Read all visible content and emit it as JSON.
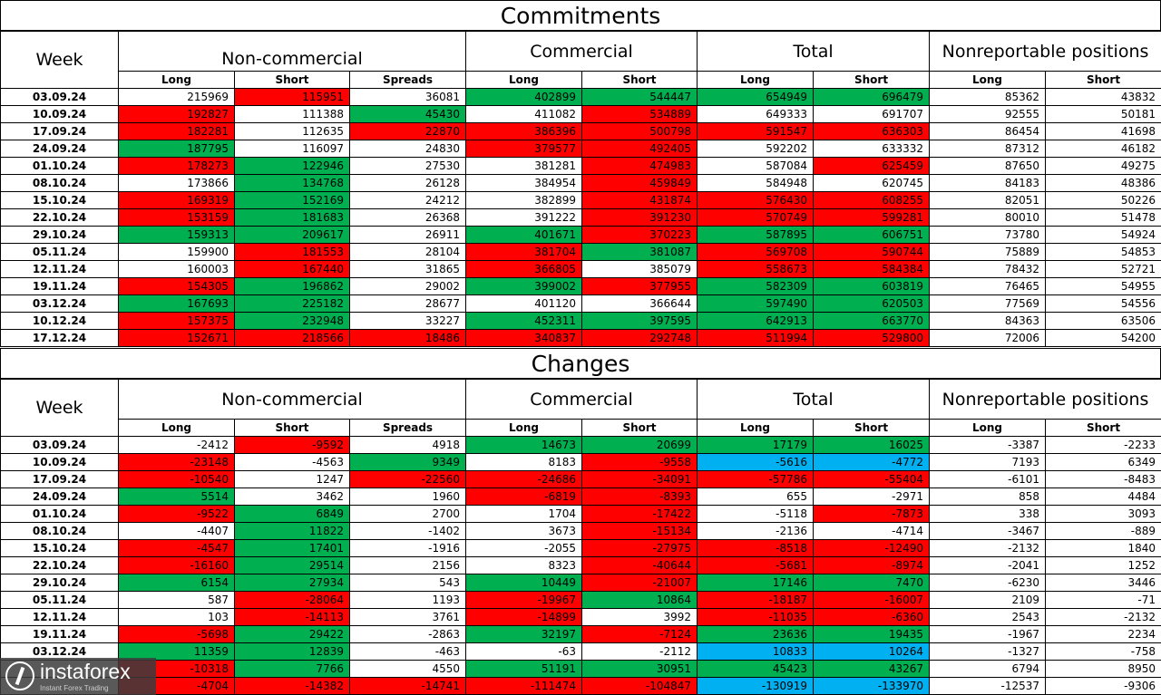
{
  "headers": {
    "week": "Week",
    "noncommercial": "Non-commercial",
    "commercial": "Commercial",
    "total": "Total",
    "nonreportable": "Nonreportable positions",
    "long": "Long",
    "short": "Short",
    "spreads": "Spreads"
  },
  "commitments": {
    "title": "Commitments",
    "rows": [
      {
        "week": "03.09.24",
        "values": [
          "215969",
          "115951",
          "36081",
          "402899",
          "544447",
          "654949",
          "696479",
          "85362",
          "43832"
        ],
        "colors": [
          "",
          "r",
          "",
          "g",
          "g",
          "g",
          "g",
          "",
          ""
        ]
      },
      {
        "week": "10.09.24",
        "values": [
          "192827",
          "111388",
          "45430",
          "411082",
          "534889",
          "649333",
          "691707",
          "92555",
          "50181"
        ],
        "colors": [
          "r",
          "",
          "g",
          "",
          "r",
          "",
          "",
          "",
          ""
        ]
      },
      {
        "week": "17.09.24",
        "values": [
          "182281",
          "112635",
          "22870",
          "386396",
          "500798",
          "591547",
          "636303",
          "86454",
          "41698"
        ],
        "colors": [
          "r",
          "",
          "r",
          "r",
          "r",
          "r",
          "r",
          "",
          ""
        ]
      },
      {
        "week": "24.09.24",
        "values": [
          "187795",
          "116097",
          "24830",
          "379577",
          "492405",
          "592202",
          "633332",
          "87312",
          "46182"
        ],
        "colors": [
          "g",
          "",
          "",
          "r",
          "r",
          "",
          "",
          "",
          ""
        ]
      },
      {
        "week": "01.10.24",
        "values": [
          "178273",
          "122946",
          "27530",
          "381281",
          "474983",
          "587084",
          "625459",
          "87650",
          "49275"
        ],
        "colors": [
          "r",
          "g",
          "",
          "",
          "r",
          "",
          "r",
          "",
          ""
        ]
      },
      {
        "week": "08.10.24",
        "values": [
          "173866",
          "134768",
          "26128",
          "384954",
          "459849",
          "584948",
          "620745",
          "84183",
          "48386"
        ],
        "colors": [
          "",
          "g",
          "",
          "",
          "r",
          "",
          "",
          "",
          ""
        ]
      },
      {
        "week": "15.10.24",
        "values": [
          "169319",
          "152169",
          "24212",
          "382899",
          "431874",
          "576430",
          "608255",
          "82051",
          "50226"
        ],
        "colors": [
          "r",
          "g",
          "",
          "",
          "r",
          "r",
          "r",
          "",
          ""
        ]
      },
      {
        "week": "22.10.24",
        "values": [
          "153159",
          "181683",
          "26368",
          "391222",
          "391230",
          "570749",
          "599281",
          "80010",
          "51478"
        ],
        "colors": [
          "r",
          "g",
          "",
          "",
          "r",
          "r",
          "r",
          "",
          ""
        ]
      },
      {
        "week": "29.10.24",
        "values": [
          "159313",
          "209617",
          "26911",
          "401671",
          "370223",
          "587895",
          "606751",
          "73780",
          "54924"
        ],
        "colors": [
          "g",
          "g",
          "",
          "g",
          "r",
          "g",
          "g",
          "",
          ""
        ]
      },
      {
        "week": "05.11.24",
        "values": [
          "159900",
          "181553",
          "28104",
          "381704",
          "381087",
          "569708",
          "590744",
          "75889",
          "54853"
        ],
        "colors": [
          "",
          "r",
          "",
          "r",
          "g",
          "r",
          "r",
          "",
          ""
        ]
      },
      {
        "week": "12.11.24",
        "values": [
          "160003",
          "167440",
          "31865",
          "366805",
          "385079",
          "558673",
          "584384",
          "78432",
          "52721"
        ],
        "colors": [
          "",
          "r",
          "",
          "r",
          "",
          "r",
          "r",
          "",
          ""
        ]
      },
      {
        "week": "19.11.24",
        "values": [
          "154305",
          "196862",
          "29002",
          "399002",
          "377955",
          "582309",
          "603819",
          "76465",
          "54955"
        ],
        "colors": [
          "r",
          "g",
          "",
          "g",
          "r",
          "g",
          "g",
          "",
          ""
        ]
      },
      {
        "week": "03.12.24",
        "values": [
          "167693",
          "225182",
          "28677",
          "401120",
          "366644",
          "597490",
          "620503",
          "77569",
          "54556"
        ],
        "colors": [
          "g",
          "g",
          "",
          "",
          "",
          "g",
          "g",
          "",
          ""
        ]
      },
      {
        "week": "10.12.24",
        "values": [
          "157375",
          "232948",
          "33227",
          "452311",
          "397595",
          "642913",
          "663770",
          "84363",
          "63506"
        ],
        "colors": [
          "r",
          "g",
          "",
          "g",
          "g",
          "g",
          "g",
          "",
          ""
        ]
      },
      {
        "week": "17.12.24",
        "values": [
          "152671",
          "218566",
          "18486",
          "340837",
          "292748",
          "511994",
          "529800",
          "72006",
          "54200"
        ],
        "colors": [
          "r",
          "r",
          "r",
          "r",
          "r",
          "r",
          "r",
          "",
          ""
        ]
      }
    ]
  },
  "changes": {
    "title": "Changes",
    "rows": [
      {
        "week": "03.09.24",
        "values": [
          "-2412",
          "-9592",
          "4918",
          "14673",
          "20699",
          "17179",
          "16025",
          "-3387",
          "-2233"
        ],
        "colors": [
          "",
          "r",
          "",
          "g",
          "g",
          "g",
          "g",
          "",
          ""
        ]
      },
      {
        "week": "10.09.24",
        "values": [
          "-23148",
          "-4563",
          "9349",
          "8183",
          "-9558",
          "-5616",
          "-4772",
          "7193",
          "6349"
        ],
        "colors": [
          "r",
          "",
          "g",
          "",
          "r",
          "b",
          "b",
          "",
          ""
        ]
      },
      {
        "week": "17.09.24",
        "values": [
          "-10540",
          "1247",
          "-22560",
          "-24686",
          "-34091",
          "-57786",
          "-55404",
          "-6101",
          "-8483"
        ],
        "colors": [
          "r",
          "",
          "r",
          "r",
          "r",
          "r",
          "r",
          "",
          ""
        ]
      },
      {
        "week": "24.09.24",
        "values": [
          "5514",
          "3462",
          "1960",
          "-6819",
          "-8393",
          "655",
          "-2971",
          "858",
          "4484"
        ],
        "colors": [
          "g",
          "",
          "",
          "r",
          "r",
          "",
          "",
          "",
          ""
        ]
      },
      {
        "week": "01.10.24",
        "values": [
          "-9522",
          "6849",
          "2700",
          "1704",
          "-17422",
          "-5118",
          "-7873",
          "338",
          "3093"
        ],
        "colors": [
          "r",
          "g",
          "",
          "",
          "r",
          "",
          "r",
          "",
          ""
        ]
      },
      {
        "week": "08.10.24",
        "values": [
          "-4407",
          "11822",
          "-1402",
          "3673",
          "-15134",
          "-2136",
          "-4714",
          "-3467",
          "-889"
        ],
        "colors": [
          "",
          "g",
          "",
          "",
          "r",
          "",
          "",
          "",
          ""
        ]
      },
      {
        "week": "15.10.24",
        "values": [
          "-4547",
          "17401",
          "-1916",
          "-2055",
          "-27975",
          "-8518",
          "-12490",
          "-2132",
          "1840"
        ],
        "colors": [
          "r",
          "g",
          "",
          "",
          "r",
          "r",
          "r",
          "",
          ""
        ]
      },
      {
        "week": "22.10.24",
        "values": [
          "-16160",
          "29514",
          "2156",
          "8323",
          "-40644",
          "-5681",
          "-8974",
          "-2041",
          "1252"
        ],
        "colors": [
          "r",
          "g",
          "",
          "",
          "r",
          "r",
          "r",
          "",
          ""
        ]
      },
      {
        "week": "29.10.24",
        "values": [
          "6154",
          "27934",
          "543",
          "10449",
          "-21007",
          "17146",
          "7470",
          "-6230",
          "3446"
        ],
        "colors": [
          "g",
          "g",
          "",
          "g",
          "r",
          "g",
          "g",
          "",
          ""
        ]
      },
      {
        "week": "05.11.24",
        "values": [
          "587",
          "-28064",
          "1193",
          "-19967",
          "10864",
          "-18187",
          "-16007",
          "2109",
          "-71"
        ],
        "colors": [
          "",
          "r",
          "",
          "r",
          "g",
          "r",
          "r",
          "",
          ""
        ]
      },
      {
        "week": "12.11.24",
        "values": [
          "103",
          "-14113",
          "3761",
          "-14899",
          "3992",
          "-11035",
          "-6360",
          "2543",
          "-2132"
        ],
        "colors": [
          "",
          "r",
          "",
          "r",
          "",
          "r",
          "r",
          "",
          ""
        ]
      },
      {
        "week": "19.11.24",
        "values": [
          "-5698",
          "29422",
          "-2863",
          "32197",
          "-7124",
          "23636",
          "19435",
          "-1967",
          "2234"
        ],
        "colors": [
          "r",
          "g",
          "",
          "g",
          "r",
          "g",
          "g",
          "",
          ""
        ]
      },
      {
        "week": "03.12.24",
        "values": [
          "11359",
          "12839",
          "-463",
          "-63",
          "-2112",
          "10833",
          "10264",
          "-1327",
          "-758"
        ],
        "colors": [
          "g",
          "g",
          "",
          "",
          "",
          "b",
          "b",
          "",
          ""
        ]
      },
      {
        "week": "",
        "values": [
          "-10318",
          "7766",
          "4550",
          "51191",
          "30951",
          "45423",
          "43267",
          "6794",
          "8950"
        ],
        "colors": [
          "r",
          "g",
          "",
          "g",
          "g",
          "g",
          "g",
          "",
          ""
        ]
      },
      {
        "week": "",
        "values": [
          "-4704",
          "-14382",
          "-14741",
          "-111474",
          "-104847",
          "-130919",
          "-133970",
          "-12537",
          "-9306"
        ],
        "colors": [
          "r",
          "r",
          "r",
          "r",
          "r",
          "b",
          "b",
          "",
          ""
        ]
      }
    ]
  },
  "logo": {
    "name": "instaforex",
    "tagline": "Instant Forex Trading"
  }
}
